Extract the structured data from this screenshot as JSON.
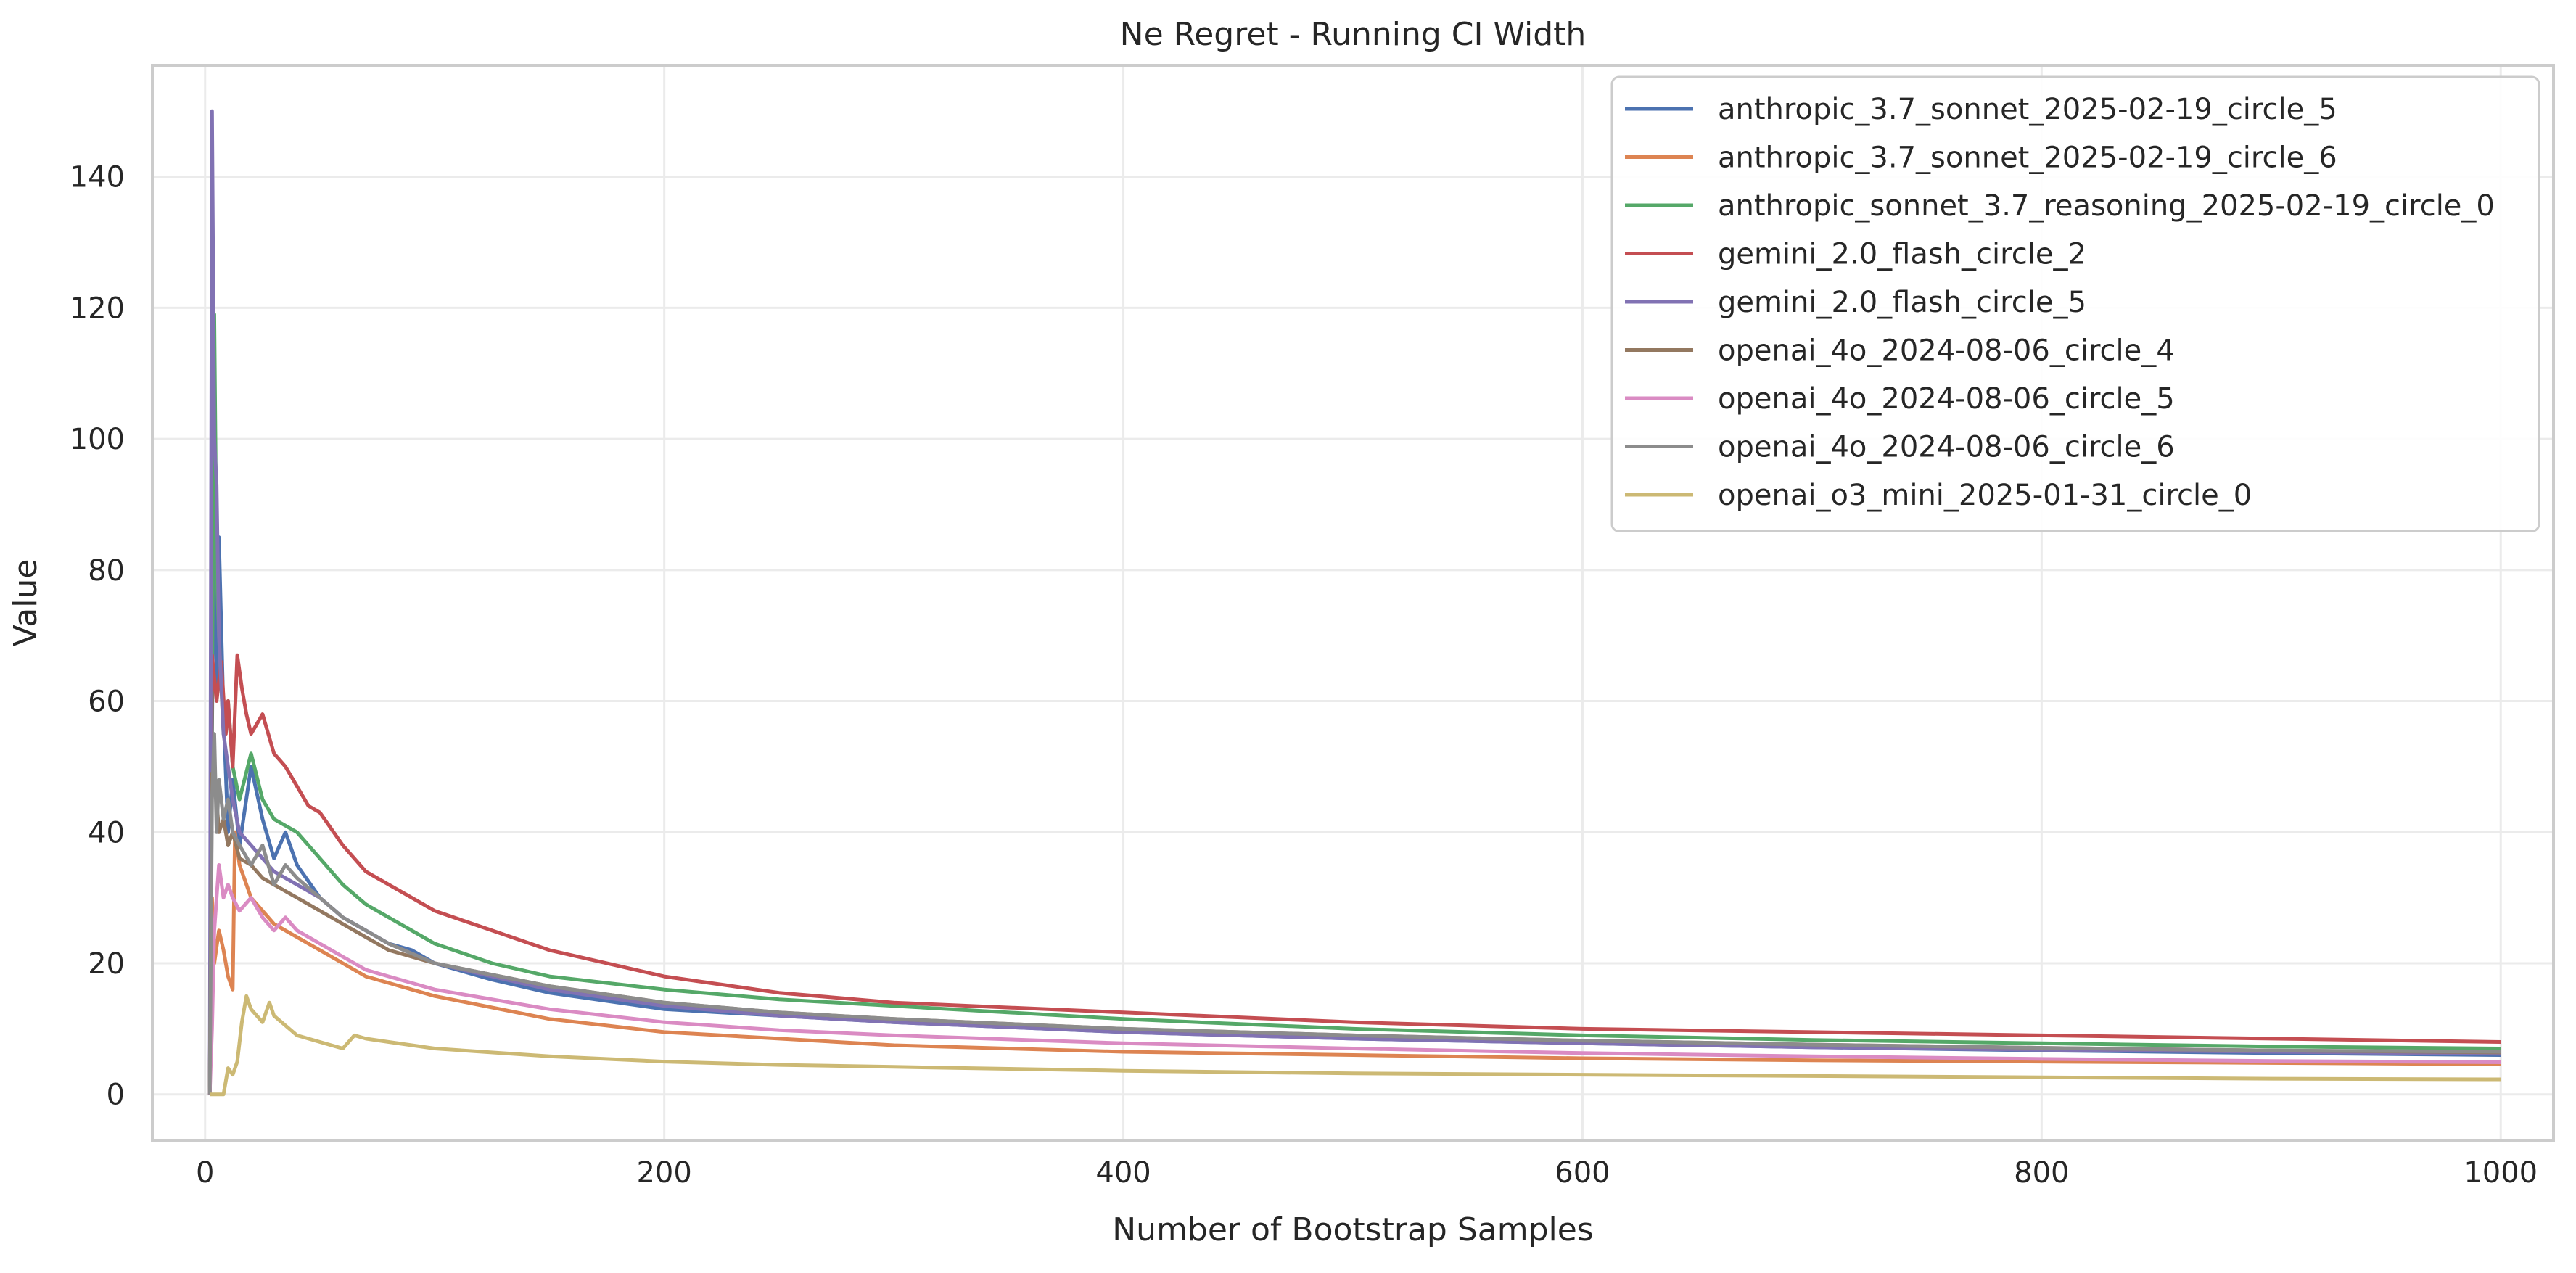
{
  "chart_data": {
    "type": "line",
    "title": "Ne Regret - Running CI Width",
    "xlabel": "Number of Bootstrap Samples",
    "ylabel": "Value",
    "xlim": [
      -23,
      1023
    ],
    "ylim": [
      -7,
      157
    ],
    "xticks": [
      0,
      200,
      400,
      600,
      800,
      1000
    ],
    "yticks": [
      0,
      20,
      40,
      60,
      80,
      100,
      120,
      140
    ],
    "grid": true,
    "legend_position": "top-right",
    "series": [
      {
        "name": "anthropic_3.7_sonnet_2025-02-19_circle_5",
        "color": "#4c72b0",
        "points": [
          [
            2,
            0
          ],
          [
            3,
            55
          ],
          [
            4,
            100
          ],
          [
            5,
            62
          ],
          [
            6,
            85
          ],
          [
            8,
            58
          ],
          [
            10,
            40
          ],
          [
            12,
            48
          ],
          [
            15,
            38
          ],
          [
            20,
            50
          ],
          [
            25,
            42
          ],
          [
            30,
            36
          ],
          [
            35,
            40
          ],
          [
            40,
            35
          ],
          [
            50,
            30
          ],
          [
            60,
            27
          ],
          [
            70,
            25
          ],
          [
            80,
            23
          ],
          [
            90,
            22
          ],
          [
            100,
            20
          ],
          [
            125,
            17.5
          ],
          [
            150,
            15.5
          ],
          [
            200,
            13
          ],
          [
            250,
            12
          ],
          [
            300,
            11
          ],
          [
            400,
            9.5
          ],
          [
            500,
            8.5
          ],
          [
            600,
            7.8
          ],
          [
            700,
            7.2
          ],
          [
            800,
            6.7
          ],
          [
            900,
            6.3
          ],
          [
            1000,
            6
          ]
        ]
      },
      {
        "name": "anthropic_3.7_sonnet_2025-02-19_circle_6",
        "color": "#dd8452",
        "points": [
          [
            2,
            0
          ],
          [
            3,
            30
          ],
          [
            4,
            20
          ],
          [
            6,
            25
          ],
          [
            8,
            22
          ],
          [
            10,
            18
          ],
          [
            12,
            16
          ],
          [
            13,
            40
          ],
          [
            15,
            35
          ],
          [
            20,
            30
          ],
          [
            25,
            28
          ],
          [
            30,
            26
          ],
          [
            40,
            24
          ],
          [
            50,
            22
          ],
          [
            60,
            20
          ],
          [
            70,
            18
          ],
          [
            80,
            17
          ],
          [
            90,
            16
          ],
          [
            100,
            15
          ],
          [
            150,
            11.5
          ],
          [
            200,
            9.5
          ],
          [
            250,
            8.5
          ],
          [
            300,
            7.5
          ],
          [
            400,
            6.5
          ],
          [
            500,
            6
          ],
          [
            600,
            5.5
          ],
          [
            700,
            5.2
          ],
          [
            800,
            5
          ],
          [
            900,
            4.8
          ],
          [
            1000,
            4.6
          ]
        ]
      },
      {
        "name": "anthropic_sonnet_3.7_reasoning_2025-02-19_circle_0",
        "color": "#55a868",
        "points": [
          [
            2,
            0
          ],
          [
            3,
            60
          ],
          [
            4,
            119
          ],
          [
            5,
            80
          ],
          [
            6,
            70
          ],
          [
            8,
            55
          ],
          [
            10,
            60
          ],
          [
            12,
            50
          ],
          [
            15,
            45
          ],
          [
            20,
            52
          ],
          [
            25,
            45
          ],
          [
            30,
            42
          ],
          [
            40,
            40
          ],
          [
            50,
            36
          ],
          [
            60,
            32
          ],
          [
            70,
            29
          ],
          [
            80,
            27
          ],
          [
            90,
            25
          ],
          [
            100,
            23
          ],
          [
            125,
            20
          ],
          [
            150,
            18
          ],
          [
            200,
            16
          ],
          [
            250,
            14.5
          ],
          [
            300,
            13.5
          ],
          [
            400,
            11.5
          ],
          [
            500,
            10
          ],
          [
            600,
            9
          ],
          [
            700,
            8.3
          ],
          [
            800,
            7.8
          ],
          [
            900,
            7.3
          ],
          [
            1000,
            7
          ]
        ]
      },
      {
        "name": "gemini_2.0_flash_circle_2",
        "color": "#c44e52",
        "points": [
          [
            2,
            0
          ],
          [
            3,
            67
          ],
          [
            5,
            60
          ],
          [
            7,
            66
          ],
          [
            9,
            55
          ],
          [
            10,
            60
          ],
          [
            12,
            50
          ],
          [
            14,
            67
          ],
          [
            16,
            62
          ],
          [
            18,
            58
          ],
          [
            20,
            55
          ],
          [
            25,
            58
          ],
          [
            30,
            52
          ],
          [
            35,
            50
          ],
          [
            40,
            47
          ],
          [
            45,
            44
          ],
          [
            50,
            43
          ],
          [
            60,
            38
          ],
          [
            70,
            34
          ],
          [
            80,
            32
          ],
          [
            90,
            30
          ],
          [
            100,
            28
          ],
          [
            125,
            25
          ],
          [
            150,
            22
          ],
          [
            200,
            18
          ],
          [
            250,
            15.5
          ],
          [
            300,
            14
          ],
          [
            400,
            12.5
          ],
          [
            500,
            11
          ],
          [
            600,
            10
          ],
          [
            700,
            9.5
          ],
          [
            800,
            9
          ],
          [
            900,
            8.5
          ],
          [
            1000,
            8
          ]
        ]
      },
      {
        "name": "gemini_2.0_flash_circle_5",
        "color": "#8172b3",
        "points": [
          [
            2,
            0
          ],
          [
            3,
            150
          ],
          [
            4,
            100
          ],
          [
            5,
            93
          ],
          [
            6,
            70
          ],
          [
            8,
            55
          ],
          [
            10,
            50
          ],
          [
            12,
            45
          ],
          [
            15,
            40
          ],
          [
            20,
            38
          ],
          [
            25,
            36
          ],
          [
            30,
            34
          ],
          [
            40,
            32
          ],
          [
            50,
            30
          ],
          [
            60,
            27
          ],
          [
            70,
            25
          ],
          [
            80,
            23
          ],
          [
            90,
            21.5
          ],
          [
            100,
            20
          ],
          [
            150,
            16
          ],
          [
            200,
            13.5
          ],
          [
            250,
            12
          ],
          [
            300,
            11
          ],
          [
            400,
            9.5
          ],
          [
            500,
            8.5
          ],
          [
            600,
            7.8
          ],
          [
            700,
            7.2
          ],
          [
            800,
            6.8
          ],
          [
            900,
            6.5
          ],
          [
            1000,
            6.2
          ]
        ]
      },
      {
        "name": "openai_4o_2024-08-06_circle_4",
        "color": "#937860",
        "points": [
          [
            2,
            0
          ],
          [
            3,
            49
          ],
          [
            4,
            47
          ],
          [
            5,
            45
          ],
          [
            6,
            40
          ],
          [
            8,
            42
          ],
          [
            10,
            38
          ],
          [
            12,
            40
          ],
          [
            15,
            36
          ],
          [
            20,
            35
          ],
          [
            25,
            33
          ],
          [
            30,
            32
          ],
          [
            40,
            30
          ],
          [
            50,
            28
          ],
          [
            60,
            26
          ],
          [
            70,
            24
          ],
          [
            80,
            22
          ],
          [
            90,
            21
          ],
          [
            100,
            20
          ],
          [
            150,
            16.5
          ],
          [
            200,
            14
          ],
          [
            250,
            12.5
          ],
          [
            300,
            11.5
          ],
          [
            400,
            10
          ],
          [
            500,
            9
          ],
          [
            600,
            8.2
          ],
          [
            700,
            7.6
          ],
          [
            800,
            7.1
          ],
          [
            900,
            6.7
          ],
          [
            1000,
            6.4
          ]
        ]
      },
      {
        "name": "openai_4o_2024-08-06_circle_5",
        "color": "#da8bc3",
        "points": [
          [
            2,
            0
          ],
          [
            3,
            10
          ],
          [
            4,
            25
          ],
          [
            5,
            30
          ],
          [
            6,
            35
          ],
          [
            8,
            30
          ],
          [
            10,
            32
          ],
          [
            12,
            30
          ],
          [
            15,
            28
          ],
          [
            20,
            30
          ],
          [
            25,
            27
          ],
          [
            30,
            25
          ],
          [
            35,
            27
          ],
          [
            40,
            25
          ],
          [
            50,
            23
          ],
          [
            60,
            21
          ],
          [
            70,
            19
          ],
          [
            80,
            18
          ],
          [
            90,
            17
          ],
          [
            100,
            16
          ],
          [
            150,
            13
          ],
          [
            200,
            11
          ],
          [
            250,
            9.8
          ],
          [
            300,
            9
          ],
          [
            400,
            7.8
          ],
          [
            500,
            7
          ],
          [
            600,
            6.3
          ],
          [
            700,
            5.8
          ],
          [
            800,
            5.4
          ],
          [
            900,
            5.1
          ],
          [
            1000,
            4.9
          ]
        ]
      },
      {
        "name": "openai_4o_2024-08-06_circle_6",
        "color": "#8c8c8c",
        "points": [
          [
            2,
            0
          ],
          [
            3,
            45
          ],
          [
            4,
            55
          ],
          [
            5,
            40
          ],
          [
            6,
            48
          ],
          [
            8,
            42
          ],
          [
            10,
            45
          ],
          [
            12,
            40
          ],
          [
            15,
            38
          ],
          [
            20,
            35
          ],
          [
            25,
            38
          ],
          [
            30,
            32
          ],
          [
            35,
            35
          ],
          [
            40,
            33
          ],
          [
            50,
            30
          ],
          [
            60,
            27
          ],
          [
            70,
            25
          ],
          [
            80,
            23
          ],
          [
            90,
            21.5
          ],
          [
            100,
            20
          ],
          [
            150,
            16.5
          ],
          [
            200,
            14
          ],
          [
            250,
            12.5
          ],
          [
            300,
            11.5
          ],
          [
            400,
            10
          ],
          [
            500,
            9
          ],
          [
            600,
            8.2
          ],
          [
            700,
            7.6
          ],
          [
            800,
            7.1
          ],
          [
            900,
            6.7
          ],
          [
            1000,
            6.5
          ]
        ]
      },
      {
        "name": "openai_o3_mini_2025-01-31_circle_0",
        "color": "#ccb974",
        "points": [
          [
            2,
            0
          ],
          [
            4,
            0
          ],
          [
            6,
            0
          ],
          [
            8,
            0
          ],
          [
            10,
            4
          ],
          [
            12,
            3
          ],
          [
            14,
            5
          ],
          [
            16,
            11
          ],
          [
            18,
            15
          ],
          [
            20,
            13
          ],
          [
            25,
            11
          ],
          [
            28,
            14
          ],
          [
            30,
            12
          ],
          [
            40,
            9
          ],
          [
            50,
            8
          ],
          [
            60,
            7
          ],
          [
            65,
            9
          ],
          [
            70,
            8.5
          ],
          [
            80,
            8
          ],
          [
            90,
            7.5
          ],
          [
            100,
            7
          ],
          [
            150,
            5.8
          ],
          [
            200,
            5
          ],
          [
            250,
            4.5
          ],
          [
            300,
            4.2
          ],
          [
            400,
            3.6
          ],
          [
            500,
            3.2
          ],
          [
            600,
            3
          ],
          [
            700,
            2.8
          ],
          [
            800,
            2.6
          ],
          [
            900,
            2.4
          ],
          [
            1000,
            2.3
          ]
        ]
      }
    ]
  }
}
